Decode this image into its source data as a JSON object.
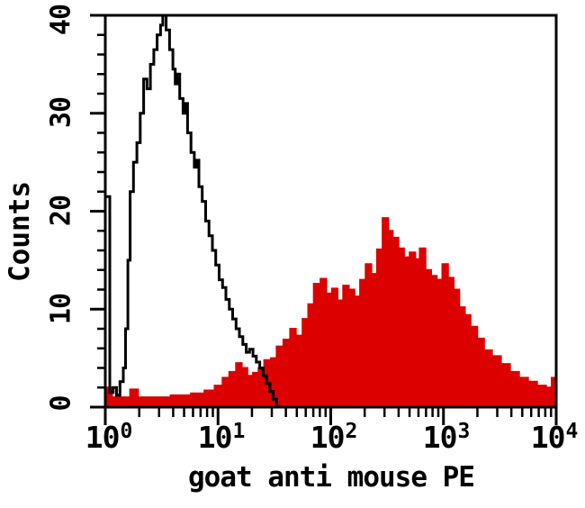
{
  "figure": {
    "background_color": "#ffffff",
    "frame_color": "#000000"
  },
  "chart_data": {
    "type": "area",
    "subtype": "flow-cytometry-overlay-histogram",
    "title": "",
    "xlabel": "goat anti mouse PE",
    "ylabel": "Counts",
    "x_scale": "log10",
    "xlim": [
      1,
      10000
    ],
    "ylim": [
      0,
      40
    ],
    "grid": "off",
    "legend": "none",
    "x_axis": {
      "ticks": [
        {
          "base": "10",
          "exp": "0",
          "log": 0
        },
        {
          "base": "10",
          "exp": "1",
          "log": 1
        },
        {
          "base": "10",
          "exp": "2",
          "log": 2
        },
        {
          "base": "10",
          "exp": "3",
          "log": 3
        },
        {
          "base": "10",
          "exp": "4",
          "log": 4
        }
      ],
      "minor_tick_mantissas": [
        2,
        3,
        4,
        5,
        6,
        7,
        8,
        9
      ]
    },
    "y_axis": {
      "ticks": [
        {
          "label": "0",
          "value": 0
        },
        {
          "label": "10",
          "value": 10
        },
        {
          "label": "20",
          "value": 20
        },
        {
          "label": "30",
          "value": 30
        },
        {
          "label": "40",
          "value": 40
        }
      ],
      "minor_step": 2
    },
    "series": [
      {
        "name": "red-filled-histogram",
        "style": "filled",
        "color": "#dd0000",
        "points_log10x_counts": [
          [
            0.0,
            2.0
          ],
          [
            0.06,
            1.0
          ],
          [
            0.22,
            1.8
          ],
          [
            0.29,
            1.0
          ],
          [
            0.58,
            1.2
          ],
          [
            0.76,
            1.4
          ],
          [
            0.88,
            1.7
          ],
          [
            0.97,
            2.2
          ],
          [
            1.04,
            3.0
          ],
          [
            1.1,
            3.6
          ],
          [
            1.16,
            4.5
          ],
          [
            1.21,
            4.0
          ],
          [
            1.26,
            3.2
          ],
          [
            1.31,
            3.5
          ],
          [
            1.36,
            4.0
          ],
          [
            1.41,
            4.8
          ],
          [
            1.47,
            5.0
          ],
          [
            1.52,
            6.2
          ],
          [
            1.58,
            6.9
          ],
          [
            1.64,
            8.0
          ],
          [
            1.69,
            7.3
          ],
          [
            1.75,
            9.0
          ],
          [
            1.8,
            10.5
          ],
          [
            1.85,
            12.6
          ],
          [
            1.91,
            13.1
          ],
          [
            1.96,
            11.6
          ],
          [
            2.01,
            12.1
          ],
          [
            2.06,
            10.9
          ],
          [
            2.11,
            12.4
          ],
          [
            2.16,
            12.0
          ],
          [
            2.21,
            11.3
          ],
          [
            2.26,
            13.0
          ],
          [
            2.31,
            14.6
          ],
          [
            2.36,
            13.6
          ],
          [
            2.41,
            16.1
          ],
          [
            2.46,
            19.3
          ],
          [
            2.51,
            18.0
          ],
          [
            2.55,
            17.3
          ],
          [
            2.6,
            16.2
          ],
          [
            2.65,
            15.3
          ],
          [
            2.7,
            15.8
          ],
          [
            2.75,
            15.1
          ],
          [
            2.79,
            16.2
          ],
          [
            2.84,
            14.0
          ],
          [
            2.89,
            13.4
          ],
          [
            2.94,
            13.0
          ],
          [
            2.99,
            14.6
          ],
          [
            3.04,
            13.2
          ],
          [
            3.09,
            12.0
          ],
          [
            3.14,
            10.2
          ],
          [
            3.19,
            9.4
          ],
          [
            3.24,
            8.2
          ],
          [
            3.3,
            7.0
          ],
          [
            3.36,
            5.8
          ],
          [
            3.43,
            5.2
          ],
          [
            3.51,
            4.4
          ],
          [
            3.59,
            3.6
          ],
          [
            3.67,
            3.0
          ],
          [
            3.75,
            2.6
          ],
          [
            3.83,
            2.2
          ],
          [
            3.91,
            2.0
          ],
          [
            3.96,
            3.0
          ]
        ]
      },
      {
        "name": "black-open-histogram",
        "style": "open",
        "color": "#000000",
        "points_log10x_counts": [
          [
            0.0,
            21.5
          ],
          [
            0.04,
            1.5
          ],
          [
            0.07,
            2.0
          ],
          [
            0.1,
            1.2
          ],
          [
            0.13,
            2.6
          ],
          [
            0.16,
            4.0
          ],
          [
            0.18,
            8.0
          ],
          [
            0.2,
            15.0
          ],
          [
            0.22,
            22.0
          ],
          [
            0.25,
            25.0
          ],
          [
            0.28,
            27.0
          ],
          [
            0.31,
            30.0
          ],
          [
            0.34,
            33.5
          ],
          [
            0.37,
            32.5
          ],
          [
            0.4,
            35.0
          ],
          [
            0.43,
            36.5
          ],
          [
            0.46,
            38.0
          ],
          [
            0.49,
            39.0
          ],
          [
            0.51,
            40.0
          ],
          [
            0.54,
            38.5
          ],
          [
            0.57,
            36.5
          ],
          [
            0.6,
            34.5
          ],
          [
            0.62,
            33.0
          ],
          [
            0.64,
            34.0
          ],
          [
            0.66,
            31.5
          ],
          [
            0.69,
            30.0
          ],
          [
            0.71,
            31.0
          ],
          [
            0.73,
            28.0
          ],
          [
            0.76,
            26.0
          ],
          [
            0.79,
            24.5
          ],
          [
            0.81,
            25.2
          ],
          [
            0.83,
            22.5
          ],
          [
            0.86,
            21.0
          ],
          [
            0.89,
            19.0
          ],
          [
            0.92,
            17.5
          ],
          [
            0.95,
            16.0
          ],
          [
            0.98,
            14.5
          ],
          [
            1.01,
            13.0
          ],
          [
            1.04,
            12.2
          ],
          [
            1.07,
            11.0
          ],
          [
            1.1,
            10.0
          ],
          [
            1.13,
            9.0
          ],
          [
            1.16,
            8.0
          ],
          [
            1.19,
            7.2
          ],
          [
            1.22,
            6.4
          ],
          [
            1.25,
            5.6
          ],
          [
            1.28,
            5.9
          ],
          [
            1.31,
            5.2
          ],
          [
            1.34,
            4.6
          ],
          [
            1.37,
            4.0
          ],
          [
            1.4,
            3.2
          ],
          [
            1.43,
            2.4
          ],
          [
            1.46,
            1.6
          ],
          [
            1.49,
            0.8
          ],
          [
            1.52,
            0.0
          ]
        ]
      }
    ]
  }
}
